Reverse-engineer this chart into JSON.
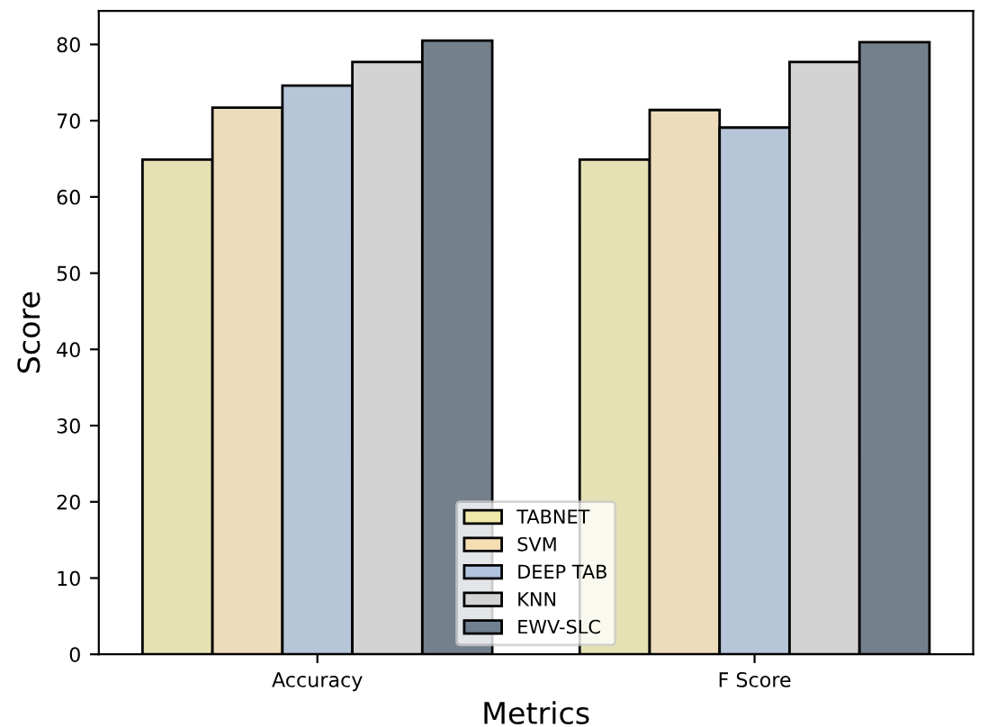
{
  "chart_data": {
    "type": "bar",
    "xlabel": "Metrics",
    "ylabel": "Score",
    "categories": [
      "Accuracy",
      "F Score"
    ],
    "series": [
      {
        "name": "TABNET",
        "color": "#eee8aa",
        "values": [
          64.9,
          64.9
        ]
      },
      {
        "name": "SVM",
        "color": "#f5deb3",
        "values": [
          71.7,
          71.4
        ]
      },
      {
        "name": "DEEP TAB",
        "color": "#b0c4de",
        "values": [
          74.6,
          69.1
        ]
      },
      {
        "name": "KNN",
        "color": "#d3d3d3",
        "values": [
          77.7,
          77.7
        ]
      },
      {
        "name": "EWV-SLC",
        "color": "#708090",
        "values": [
          80.5,
          80.3
        ]
      }
    ],
    "ylim": [
      0,
      84.4
    ],
    "yticks": [
      0,
      10,
      20,
      30,
      40,
      50,
      60,
      70,
      80
    ],
    "grid": false,
    "legend": "bottom"
  }
}
